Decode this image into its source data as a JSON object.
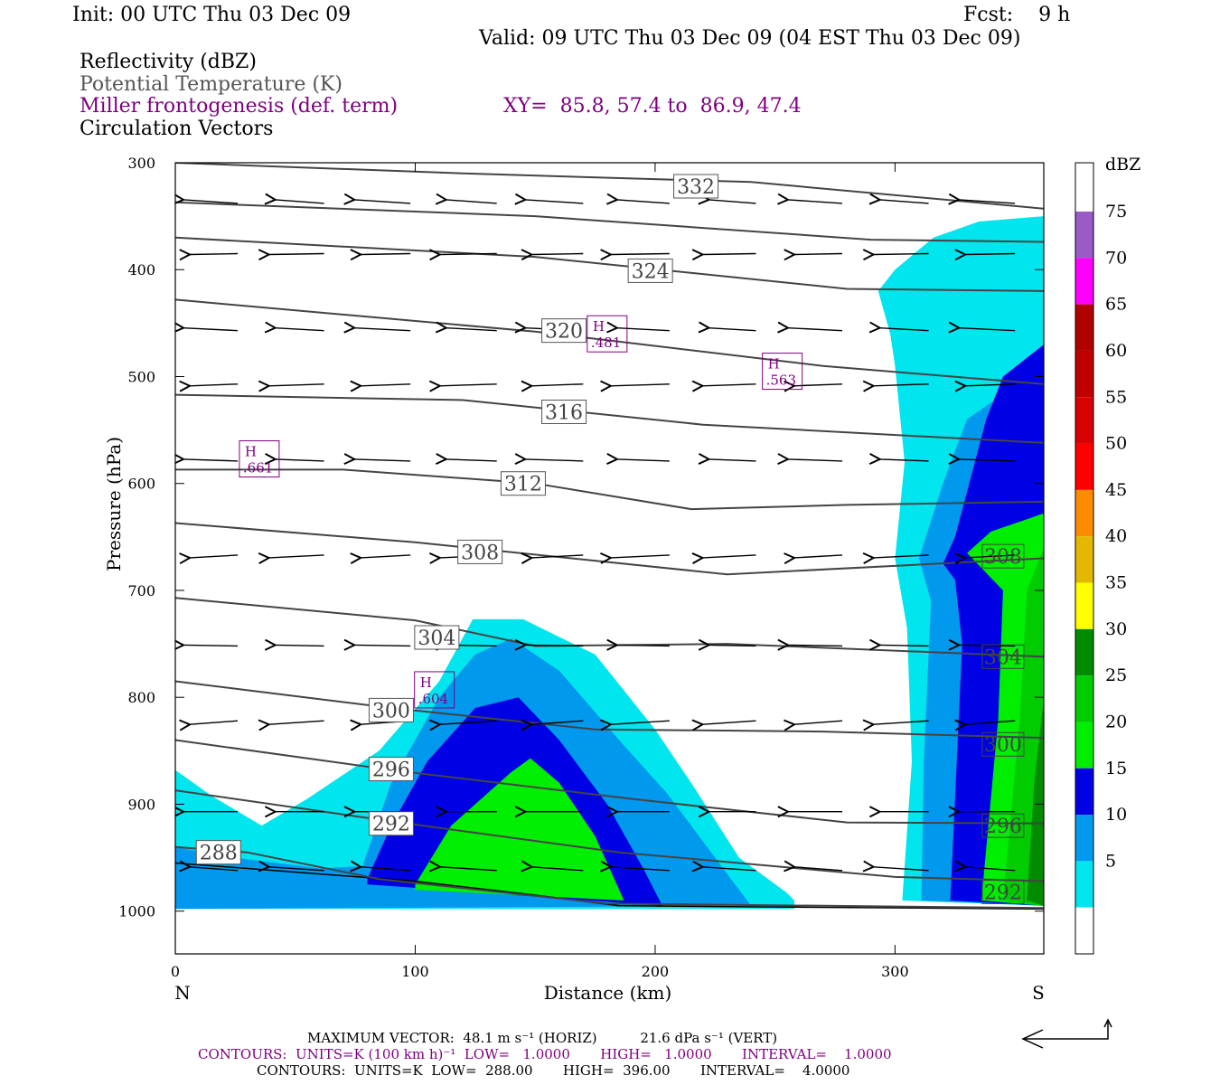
{
  "header": {
    "init": "Init: 00 UTC Thu 03 Dec 09",
    "fcst": "Fcst:    9 h",
    "valid": "Valid: 09 UTC Thu 03 Dec 09 (04 EST Thu 03 Dec 09)",
    "field1": "Reflectivity (dBZ)",
    "field2": "Potential Temperature (K)",
    "field3": "Miller frontogenesis (def. term)",
    "xy": "XY=  85.8, 57.4 to  86.9, 47.4",
    "field4": "Circulation Vectors"
  },
  "colors": {
    "dbz_5": "#00e5ee",
    "dbz_10": "#0099ee",
    "dbz_15": "#0000e5",
    "dbz_20": "#00ee00",
    "dbz_25": "#00cc00",
    "dbz_30": "#008b00",
    "dbz_35": "#ffff00",
    "dbz_40": "#e5b800",
    "dbz_45": "#ff8c00",
    "dbz_50": "#ff0000",
    "dbz_55": "#d80000",
    "dbz_60": "#c00000",
    "dbz_65": "#b00000",
    "dbz_70": "#ff00ff",
    "dbz_75": "#9a5bc7",
    "theta_line": "#444444",
    "fronto": "#800080"
  },
  "chart_data": {
    "type": "heatmap",
    "xlabel": "Distance (km)",
    "ylabel": "Pressure (hPa)",
    "xlim": [
      0,
      362
    ],
    "ylim": [
      1040,
      300
    ],
    "x_ticks": [
      0,
      100,
      200,
      300
    ],
    "y_ticks": [
      300,
      400,
      500,
      600,
      700,
      800,
      900,
      1000
    ],
    "x_end_labels": {
      "left": "N",
      "right": "S"
    },
    "colorbar": {
      "title": "dBZ",
      "levels": [
        5,
        10,
        15,
        20,
        25,
        30,
        35,
        40,
        45,
        50,
        55,
        60,
        65,
        70,
        75
      ]
    },
    "theta_contours": [
      {
        "label": "332",
        "points": [
          [
            0,
            300
          ],
          [
            120,
            310
          ],
          [
            240,
            318
          ],
          [
            362,
            343
          ]
        ],
        "label_at": [
          217,
          322
        ]
      },
      {
        "label": "",
        "points": [
          [
            0,
            337
          ],
          [
            150,
            350
          ],
          [
            290,
            372
          ],
          [
            362,
            374
          ]
        ]
      },
      {
        "label": "324",
        "points": [
          [
            0,
            370
          ],
          [
            150,
            388
          ],
          [
            280,
            418
          ],
          [
            362,
            420
          ]
        ],
        "label_at": [
          198,
          401
        ]
      },
      {
        "label": "320",
        "points": [
          [
            0,
            428
          ],
          [
            150,
            458
          ],
          [
            270,
            490
          ],
          [
            362,
            507
          ]
        ],
        "label_at": [
          162,
          457
        ]
      },
      {
        "label": "316",
        "points": [
          [
            0,
            517
          ],
          [
            120,
            522
          ],
          [
            220,
            545
          ],
          [
            362,
            562
          ]
        ],
        "label_at": [
          162,
          533
        ]
      },
      {
        "label": "312",
        "points": [
          [
            0,
            587
          ],
          [
            70,
            587
          ],
          [
            150,
            600
          ],
          [
            215,
            624
          ],
          [
            280,
            620
          ],
          [
            362,
            617
          ]
        ],
        "label_at": [
          145,
          600
        ]
      },
      {
        "label": "308",
        "points": [
          [
            0,
            637
          ],
          [
            100,
            655
          ],
          [
            230,
            685
          ],
          [
            362,
            670
          ]
        ],
        "label_at": [
          127,
          664
        ]
      },
      {
        "label": "304",
        "points": [
          [
            0,
            707
          ],
          [
            100,
            728
          ],
          [
            150,
            752
          ],
          [
            230,
            750
          ],
          [
            362,
            762
          ]
        ],
        "label_at": [
          109,
          744
        ]
      },
      {
        "label": "300",
        "points": [
          [
            0,
            785
          ],
          [
            90,
            810
          ],
          [
            175,
            830
          ],
          [
            270,
            832
          ],
          [
            362,
            838
          ]
        ],
        "label_at": [
          90,
          812
        ]
      },
      {
        "label": "296",
        "points": [
          [
            0,
            840
          ],
          [
            90,
            868
          ],
          [
            190,
            895
          ],
          [
            280,
            917
          ],
          [
            362,
            918
          ]
        ],
        "label_at": [
          90,
          867
        ]
      },
      {
        "label": "292",
        "points": [
          [
            0,
            887
          ],
          [
            90,
            916
          ],
          [
            185,
            945
          ],
          [
            300,
            968
          ],
          [
            362,
            972
          ]
        ],
        "label_at": [
          90,
          918
        ]
      },
      {
        "label": "288",
        "points": [
          [
            0,
            940
          ],
          [
            30,
            945
          ],
          [
            85,
            970
          ],
          [
            180,
            993
          ],
          [
            362,
            997
          ]
        ],
        "label_at": [
          18,
          945
        ]
      }
    ],
    "right_theta_labels": [
      {
        "label": "308",
        "at": [
          345,
          668
        ]
      },
      {
        "label": "304",
        "at": [
          345,
          762
        ]
      },
      {
        "label": "300",
        "at": [
          345,
          844
        ]
      },
      {
        "label": "296",
        "at": [
          345,
          920
        ]
      },
      {
        "label": "292",
        "at": [
          345,
          982
        ]
      }
    ],
    "fronto_maxima": [
      {
        "letter": "H",
        "value": ".481",
        "at": [
          180,
          460
        ]
      },
      {
        "letter": "H",
        "value": ".563",
        "at": [
          253,
          495
        ]
      },
      {
        "letter": "H",
        "value": ".661",
        "at": [
          35,
          577
        ]
      },
      {
        "letter": "H",
        "value": ".604",
        "at": [
          108,
          793
        ]
      }
    ],
    "reflectivity_regions": [
      {
        "dbz": 5,
        "points": [
          [
            0,
            868
          ],
          [
            15,
            892
          ],
          [
            36,
            920
          ],
          [
            55,
            895
          ],
          [
            85,
            850
          ],
          [
            110,
            785
          ],
          [
            124,
            727
          ],
          [
            145,
            727
          ],
          [
            175,
            760
          ],
          [
            200,
            830
          ],
          [
            215,
            880
          ],
          [
            235,
            950
          ],
          [
            255,
            983
          ],
          [
            258,
            990
          ],
          [
            258,
            998
          ],
          [
            0,
            998
          ]
        ]
      },
      {
        "dbz": 10,
        "points": [
          [
            0,
            940
          ],
          [
            25,
            950
          ],
          [
            60,
            960
          ],
          [
            78,
            958
          ],
          [
            90,
            880
          ],
          [
            110,
            800
          ],
          [
            125,
            760
          ],
          [
            140,
            745
          ],
          [
            160,
            775
          ],
          [
            185,
            840
          ],
          [
            205,
            890
          ],
          [
            225,
            950
          ],
          [
            240,
            995
          ],
          [
            0,
            998
          ]
        ]
      },
      {
        "dbz": 15,
        "points": [
          [
            80,
            970
          ],
          [
            90,
            920
          ],
          [
            105,
            860
          ],
          [
            125,
            810
          ],
          [
            143,
            800
          ],
          [
            160,
            840
          ],
          [
            180,
            900
          ],
          [
            195,
            960
          ],
          [
            203,
            995
          ],
          [
            80,
            975
          ]
        ]
      },
      {
        "dbz": 20,
        "points": [
          [
            100,
            975
          ],
          [
            115,
            920
          ],
          [
            140,
            870
          ],
          [
            148,
            857
          ],
          [
            160,
            880
          ],
          [
            175,
            930
          ],
          [
            187,
            990
          ],
          [
            100,
            980
          ]
        ]
      },
      {
        "dbz": 5,
        "points": [
          [
            362,
            350
          ],
          [
            335,
            355
          ],
          [
            316,
            370
          ],
          [
            300,
            400
          ],
          [
            293,
            420
          ],
          [
            298,
            460
          ],
          [
            300,
            490
          ],
          [
            304,
            580
          ],
          [
            300,
            670
          ],
          [
            305,
            735
          ],
          [
            307,
            860
          ],
          [
            303,
            990
          ],
          [
            362,
            995
          ]
        ]
      },
      {
        "dbz": 10,
        "points": [
          [
            362,
            505
          ],
          [
            346,
            515
          ],
          [
            330,
            540
          ],
          [
            320,
            600
          ],
          [
            310,
            670
          ],
          [
            315,
            710
          ],
          [
            312,
            860
          ],
          [
            311,
            990
          ],
          [
            362,
            995
          ]
        ]
      },
      {
        "dbz": 15,
        "points": [
          [
            362,
            470
          ],
          [
            345,
            500
          ],
          [
            338,
            540
          ],
          [
            325,
            650
          ],
          [
            320,
            675
          ],
          [
            325,
            690
          ],
          [
            328,
            750
          ],
          [
            323,
            990
          ],
          [
            362,
            995
          ]
        ]
      },
      {
        "dbz": 20,
        "points": [
          [
            362,
            628
          ],
          [
            340,
            645
          ],
          [
            330,
            665
          ],
          [
            345,
            700
          ],
          [
            343,
            820
          ],
          [
            336,
            990
          ],
          [
            362,
            995
          ]
        ]
      },
      {
        "dbz": 25,
        "points": [
          [
            362,
            660
          ],
          [
            355,
            700
          ],
          [
            352,
            820
          ],
          [
            345,
            990
          ],
          [
            362,
            995
          ]
        ]
      },
      {
        "dbz": 30,
        "points": [
          [
            362,
            800
          ],
          [
            358,
            880
          ],
          [
            355,
            990
          ],
          [
            362,
            995
          ]
        ]
      }
    ],
    "vector_rows": [
      320,
      335,
      383,
      388,
      455,
      505,
      575,
      597,
      665,
      750,
      813,
      900,
      948,
      990
    ],
    "terrain": [
      [
        0,
        955
      ],
      [
        100,
        972
      ],
      [
        150,
        985
      ],
      [
        185,
        995
      ],
      [
        362,
        998
      ]
    ]
  },
  "footer": {
    "line1": "MAXIMUM VECTOR:  48.1 m s⁻¹ (HORIZ)          21.6 dPa s⁻¹ (VERT)",
    "line2": "CONTOURS:  UNITS=K (100 km h)⁻¹  LOW=   1.0000       HIGH=   1.0000       INTERVAL=    1.0000",
    "line3": "CONTOURS:  UNITS=K  LOW=  288.00       HIGH=  396.00       INTERVAL=    4.0000"
  }
}
